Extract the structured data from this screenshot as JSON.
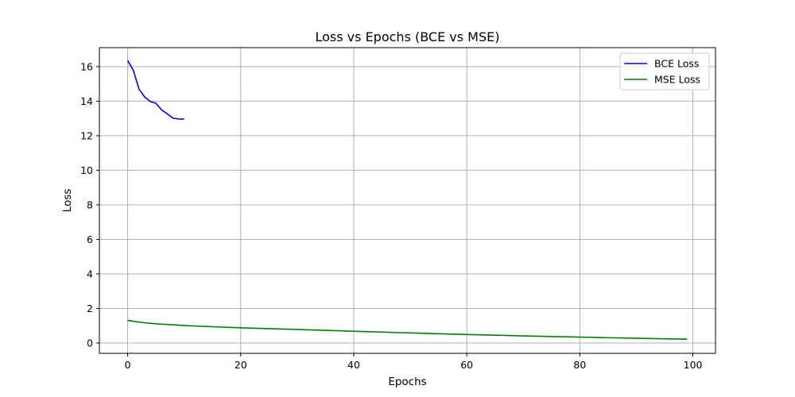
{
  "chart_data": {
    "type": "line",
    "title": "Loss vs Epochs (BCE vs MSE)",
    "xlabel": "Epochs",
    "ylabel": "Loss",
    "xlim": [
      -5,
      104
    ],
    "ylim": [
      -0.6,
      17.1
    ],
    "xticks": [
      0,
      20,
      40,
      60,
      80,
      100
    ],
    "yticks": [
      0,
      2,
      4,
      6,
      8,
      10,
      12,
      14,
      16
    ],
    "grid": true,
    "legend_position": "top-right",
    "series": [
      {
        "name": "BCE Loss",
        "color": "#0000ff",
        "x": [
          0,
          1,
          2,
          3,
          4,
          5,
          6,
          7,
          8,
          9,
          10
        ],
        "y": [
          16.35,
          15.8,
          14.7,
          14.25,
          13.98,
          13.88,
          13.5,
          13.27,
          13.02,
          12.97,
          12.96
        ]
      },
      {
        "name": "MSE Loss",
        "color": "#008000",
        "x": [
          0,
          1,
          2,
          3,
          4,
          5,
          6,
          8,
          10,
          12,
          15,
          20,
          25,
          30,
          40,
          50,
          60,
          70,
          80,
          90,
          99
        ],
        "y": [
          1.31,
          1.26,
          1.21,
          1.17,
          1.14,
          1.11,
          1.09,
          1.05,
          1.01,
          0.98,
          0.94,
          0.88,
          0.83,
          0.78,
          0.68,
          0.58,
          0.49,
          0.41,
          0.34,
          0.27,
          0.22
        ]
      }
    ]
  }
}
